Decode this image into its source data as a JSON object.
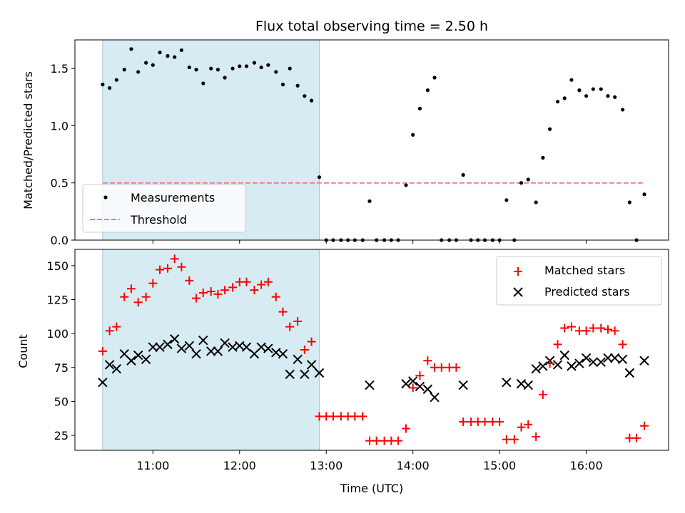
{
  "chart_data": {
    "title": "Flux total observing time = 2.50 h",
    "xlabel": "Time (UTC)",
    "x_unit": "hours UTC",
    "xlim": [
      10.1,
      16.95
    ],
    "x_ticks": [
      11,
      12,
      13,
      14,
      15,
      16
    ],
    "x_tick_labels": [
      "11:00",
      "12:00",
      "13:00",
      "14:00",
      "15:00",
      "16:00"
    ],
    "shaded_span": [
      10.42,
      12.92
    ],
    "shaded_color": "#add8e6",
    "panels": [
      {
        "type": "scatter",
        "ylabel": "Matched/Predicted stars",
        "ylim": [
          0,
          1.75
        ],
        "y_ticks": [
          0,
          0.5,
          1.0,
          1.5
        ],
        "y_tick_labels": [
          "0.0",
          "0.5",
          "1.0",
          "1.5"
        ],
        "legend_position": "lower-left",
        "threshold": {
          "name": "Threshold",
          "y": 0.5,
          "x_range": [
            10.42,
            16.67
          ],
          "color": "#f08080",
          "style": "dashed"
        },
        "series": [
          {
            "name": "Measurements",
            "marker": "dot",
            "color": "#000000",
            "x": [
              10.42,
              10.5,
              10.58,
              10.67,
              10.75,
              10.83,
              10.92,
              11.0,
              11.08,
              11.17,
              11.25,
              11.33,
              11.42,
              11.5,
              11.58,
              11.67,
              11.75,
              11.83,
              11.92,
              12.0,
              12.08,
              12.17,
              12.25,
              12.33,
              12.42,
              12.5,
              12.58,
              12.67,
              12.75,
              12.83,
              12.92,
              13.0,
              13.08,
              13.17,
              13.25,
              13.33,
              13.42,
              13.5,
              13.58,
              13.67,
              13.75,
              13.83,
              13.92,
              14.0,
              14.08,
              14.17,
              14.25,
              14.33,
              14.42,
              14.5,
              14.58,
              14.67,
              14.75,
              14.83,
              14.92,
              15.0,
              15.08,
              15.17,
              15.25,
              15.33,
              15.42,
              15.5,
              15.58,
              15.67,
              15.75,
              15.83,
              15.92,
              16.0,
              16.08,
              16.17,
              16.25,
              16.33,
              16.42,
              16.5,
              16.58,
              16.67
            ],
            "y": [
              1.36,
              1.33,
              1.4,
              1.49,
              1.67,
              1.47,
              1.55,
              1.53,
              1.64,
              1.61,
              1.6,
              1.66,
              1.51,
              1.49,
              1.37,
              1.5,
              1.49,
              1.42,
              1.5,
              1.52,
              1.52,
              1.55,
              1.51,
              1.53,
              1.47,
              1.36,
              1.5,
              1.35,
              1.26,
              1.22,
              0.55,
              0.0,
              0.0,
              0.0,
              0.0,
              0.0,
              0.0,
              0.34,
              0.0,
              0.0,
              0.0,
              0.0,
              0.48,
              0.92,
              1.15,
              1.31,
              1.42,
              0.0,
              0.0,
              0.0,
              0.57,
              0.0,
              0.0,
              0.0,
              0.0,
              0.0,
              0.35,
              0.0,
              0.5,
              0.53,
              0.33,
              0.72,
              0.97,
              1.21,
              1.24,
              1.4,
              1.31,
              1.26,
              1.32,
              1.32,
              1.26,
              1.25,
              1.14,
              0.33,
              0.0,
              0.4
            ]
          }
        ]
      },
      {
        "type": "scatter",
        "ylabel": "Count",
        "ylim": [
          14,
          162
        ],
        "y_ticks": [
          25,
          50,
          75,
          100,
          125,
          150
        ],
        "y_tick_labels": [
          "25",
          "50",
          "75",
          "100",
          "125",
          "150"
        ],
        "legend_position": "upper-right",
        "series": [
          {
            "name": "Matched stars",
            "marker": "plus",
            "color": "#ff0000",
            "x": [
              10.42,
              10.5,
              10.58,
              10.67,
              10.75,
              10.83,
              10.92,
              11.0,
              11.08,
              11.17,
              11.25,
              11.33,
              11.42,
              11.5,
              11.58,
              11.67,
              11.75,
              11.83,
              11.92,
              12.0,
              12.08,
              12.17,
              12.25,
              12.33,
              12.42,
              12.5,
              12.58,
              12.67,
              12.75,
              12.83,
              12.92,
              13.0,
              13.08,
              13.17,
              13.25,
              13.33,
              13.42,
              13.5,
              13.58,
              13.67,
              13.75,
              13.83,
              13.92,
              14.0,
              14.08,
              14.17,
              14.25,
              14.33,
              14.42,
              14.5,
              14.58,
              14.67,
              14.75,
              14.83,
              14.92,
              15.0,
              15.08,
              15.17,
              15.25,
              15.33,
              15.42,
              15.5,
              15.58,
              15.67,
              15.75,
              15.83,
              15.92,
              16.0,
              16.08,
              16.17,
              16.25,
              16.33,
              16.42,
              16.5,
              16.58,
              16.67
            ],
            "y": [
              87,
              102,
              105,
              127,
              133,
              123,
              127,
              137,
              147,
              148,
              155,
              149,
              139,
              126,
              130,
              131,
              129,
              132,
              134,
              138,
              138,
              132,
              136,
              138,
              127,
              116,
              105,
              109,
              88,
              94,
              39,
              39,
              39,
              39,
              39,
              39,
              39,
              21,
              21,
              21,
              21,
              21,
              30,
              60,
              69,
              80,
              75,
              75,
              75,
              75,
              35,
              35,
              35,
              35,
              35,
              35,
              22,
              22,
              31,
              33,
              24,
              55,
              78,
              92,
              104,
              105,
              102,
              102,
              104,
              104,
              103,
              102,
              92,
              23,
              23,
              32
            ]
          },
          {
            "name": "Predicted stars",
            "marker": "x",
            "color": "#000000",
            "x": [
              10.42,
              10.5,
              10.58,
              10.67,
              10.75,
              10.83,
              10.92,
              11.0,
              11.08,
              11.17,
              11.25,
              11.33,
              11.42,
              11.5,
              11.58,
              11.67,
              11.75,
              11.83,
              11.92,
              12.0,
              12.08,
              12.17,
              12.25,
              12.33,
              12.42,
              12.5,
              12.58,
              12.67,
              12.75,
              12.83,
              12.92,
              13.5,
              13.92,
              14.0,
              14.08,
              14.17,
              14.25,
              14.58,
              15.08,
              15.25,
              15.33,
              15.42,
              15.5,
              15.58,
              15.67,
              15.75,
              15.83,
              15.92,
              16.0,
              16.08,
              16.17,
              16.25,
              16.33,
              16.42,
              16.5,
              16.67
            ],
            "y": [
              64,
              77,
              74,
              85,
              80,
              84,
              81,
              90,
              90,
              92,
              96,
              89,
              91,
              85,
              95,
              87,
              87,
              93,
              90,
              91,
              90,
              85,
              90,
              89,
              86,
              85,
              70,
              81,
              70,
              77,
              71,
              62,
              63,
              65,
              61,
              59,
              53,
              62,
              64,
              63,
              62,
              74,
              76,
              80,
              77,
              84,
              76,
              78,
              82,
              79,
              79,
              82,
              82,
              81,
              71,
              80
            ]
          }
        ]
      }
    ]
  }
}
